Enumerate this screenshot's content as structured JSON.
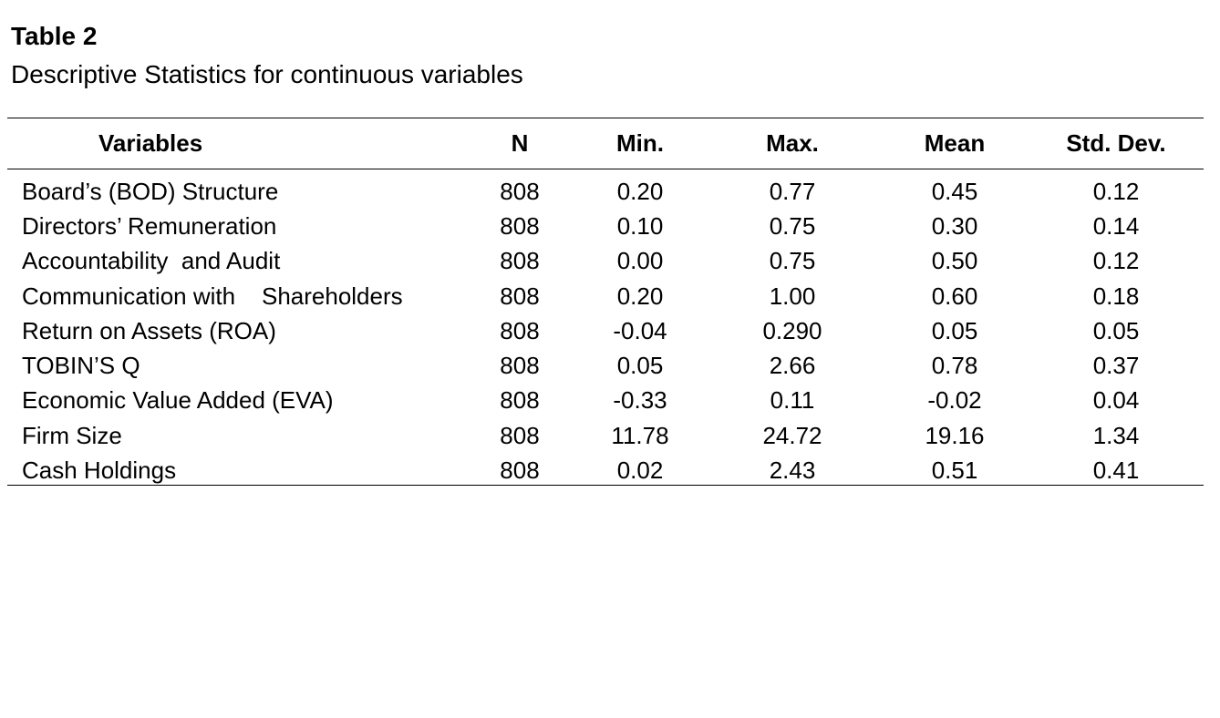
{
  "document": {
    "label": "Table 2",
    "title": "Descriptive Statistics for continuous variables"
  },
  "table": {
    "headers": [
      "Variables",
      "N",
      "Min.",
      "Max.",
      "Mean",
      "Std. Dev."
    ],
    "rows": [
      [
        "Board’s (BOD) Structure",
        "808",
        "0.20",
        "0.77",
        "0.45",
        "0.12"
      ],
      [
        "Directors’ Remuneration",
        "808",
        "0.10",
        "0.75",
        "0.30",
        "0.14"
      ],
      [
        "Accountability  and Audit",
        "808",
        "0.00",
        "0.75",
        "0.50",
        "0.12"
      ],
      [
        "Communication with    Shareholders",
        "808",
        "0.20",
        "1.00",
        "0.60",
        "0.18"
      ],
      [
        "Return on Assets (ROA)",
        "808",
        "-0.04",
        "0.290",
        "0.05",
        "0.05"
      ],
      [
        "TOBIN’S Q",
        "808",
        "0.05",
        "2.66",
        "0.78",
        "0.37"
      ],
      [
        "Economic Value Added (EVA)",
        "808",
        "-0.33",
        "0.11",
        "-0.02",
        "0.04"
      ],
      [
        "Firm Size",
        "808",
        "11.78",
        "24.72",
        "19.16",
        "1.34"
      ],
      [
        "Cash Holdings",
        "808",
        "0.02",
        "2.43",
        "0.51",
        "0.41"
      ]
    ]
  }
}
